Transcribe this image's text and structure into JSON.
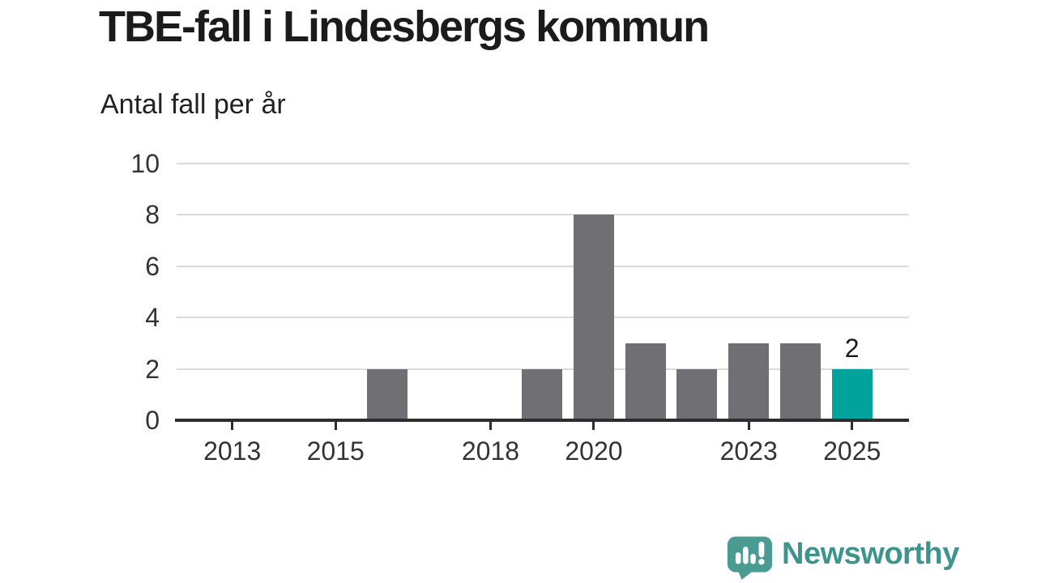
{
  "chart_data": {
    "type": "bar",
    "title": "TBE-fall i Lindesbergs kommun",
    "subtitle": "Antal fall per år",
    "categories": [
      2012,
      2013,
      2014,
      2015,
      2016,
      2017,
      2018,
      2019,
      2020,
      2021,
      2022,
      2023,
      2024,
      2025
    ],
    "values": [
      0,
      0,
      0,
      0,
      2,
      0,
      0,
      2,
      8,
      3,
      2,
      3,
      3,
      2
    ],
    "xlabel": "",
    "ylabel": "Antal fall per år",
    "ylim": [
      0,
      10
    ],
    "yticks": [
      0,
      2,
      4,
      6,
      8,
      10
    ],
    "xticks": [
      2013,
      2015,
      2018,
      2020,
      2023,
      2025
    ],
    "grid": true,
    "legend_position": "none",
    "bar_color": "#706F73",
    "highlight_year": 2025,
    "highlight_color": "#00A29B",
    "data_labels": [
      {
        "year": 2025,
        "text": "2"
      }
    ],
    "axis_color": "#2D2D2D",
    "gridline_color": "#DADADA",
    "tick_label_color": "#333333"
  },
  "footer": {
    "brand": "Newsworthy",
    "brand_color": "#3D948D",
    "logo_bubble_color": "#4A9C93",
    "logo_glyph_color": "#FFFFFF"
  }
}
